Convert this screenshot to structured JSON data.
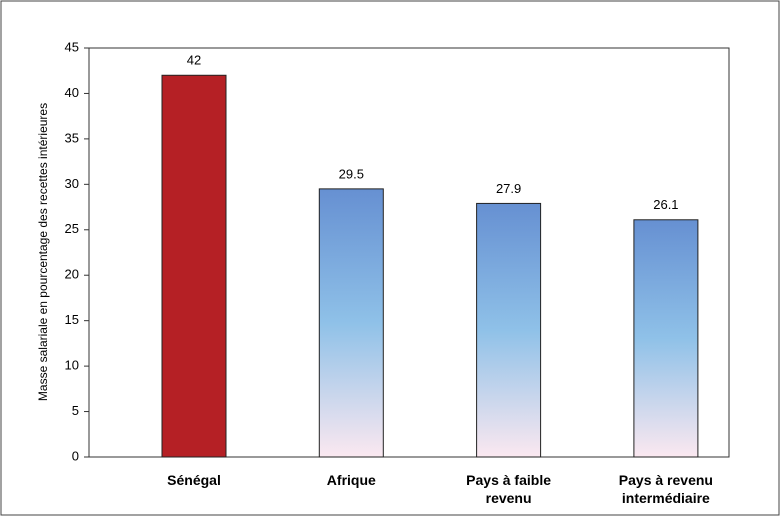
{
  "chart_data": {
    "type": "bar",
    "y_axis_label": "Masse salariale en pourcentage des recettes intérieures",
    "categories": [
      "Sénégal",
      "Afrique",
      "Pays à faible revenu",
      "Pays à revenu intermédiaire"
    ],
    "values": [
      42,
      29.5,
      27.9,
      26.1
    ],
    "bar_fills": [
      "solid",
      "gradient",
      "gradient",
      "gradient"
    ],
    "color": "#b52025",
    "gradient": [
      "#6690d2",
      "#8fc1e8",
      "#fbe8f0"
    ],
    "ylim": [
      0,
      45
    ],
    "yticks": [
      0,
      5,
      10,
      15,
      20,
      25,
      30,
      35,
      40,
      45
    ],
    "grid": false
  }
}
